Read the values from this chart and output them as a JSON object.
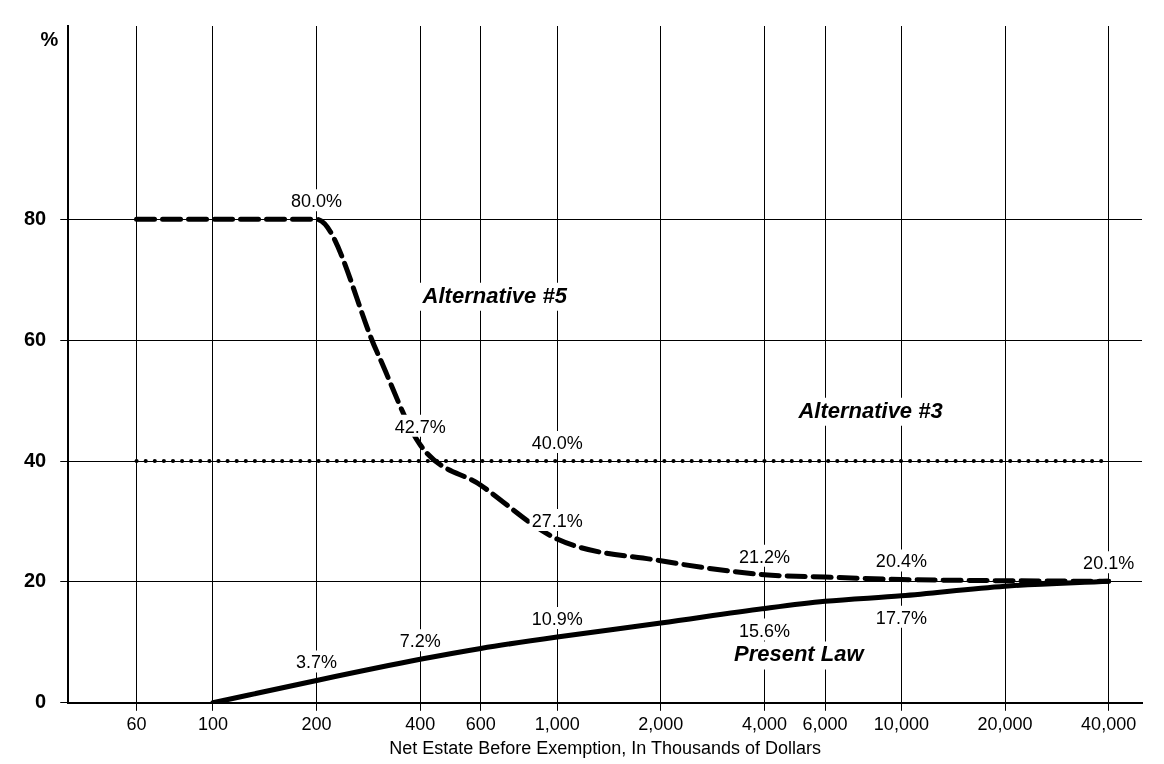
{
  "chart_data": {
    "type": "line",
    "ylabel": "%",
    "xlabel": "Net Estate Before Exemption, In Thousands of Dollars",
    "log": "x",
    "grid": true,
    "legend": false,
    "marker": "none",
    "xlim": [
      38,
      50000
    ],
    "ylim": [
      0,
      112
    ],
    "xticks": [
      60,
      100,
      200,
      400,
      600,
      {
        "value": 1000,
        "label": "1,000"
      },
      {
        "value": 2000,
        "label": "2,000"
      },
      {
        "value": 4000,
        "label": "4,000"
      },
      {
        "value": 6000,
        "label": "6,000"
      },
      {
        "value": 10000,
        "label": "10,000"
      },
      {
        "value": 20000,
        "label": "20,000"
      },
      {
        "value": 40000,
        "label": "40,000"
      }
    ],
    "yticks": [
      0,
      20,
      40,
      60,
      80
    ],
    "series": [
      {
        "name": "Alternative #5",
        "color": "#000000",
        "line_style": "dashed",
        "x": [
          60,
          200,
          300,
          400,
          600,
          1000,
          2000,
          4000,
          6000,
          10000,
          20000,
          40000
        ],
        "values": [
          80,
          80,
          58,
          42.7,
          36,
          27.1,
          23.5,
          21.2,
          20.8,
          20.4,
          20.2,
          20.1
        ],
        "value_labels": [
          null,
          "80.0%",
          null,
          "42.7%",
          null,
          "27.1%",
          null,
          "21.2%",
          null,
          "20.4%",
          null,
          "20.1%"
        ]
      },
      {
        "name": "Alternative #3",
        "color": "#000000",
        "line_style": "dotted",
        "x": [
          60,
          1000,
          40000
        ],
        "values": [
          40,
          40,
          40
        ],
        "value_labels": [
          null,
          "40.0%",
          null
        ]
      },
      {
        "name": "Present Law",
        "color": "#000000",
        "line_style": "solid",
        "x": [
          100,
          200,
          400,
          600,
          1000,
          2000,
          4000,
          6000,
          10000,
          20000,
          40000
        ],
        "values": [
          0,
          3.7,
          7.2,
          9,
          10.9,
          13.2,
          15.6,
          16.8,
          17.7,
          19.3,
          20.1
        ],
        "value_labels": [
          null,
          "3.7%",
          "7.2%",
          null,
          "10.9%",
          null,
          "15.6%",
          null,
          "17.7%",
          null,
          null
        ]
      }
    ]
  }
}
